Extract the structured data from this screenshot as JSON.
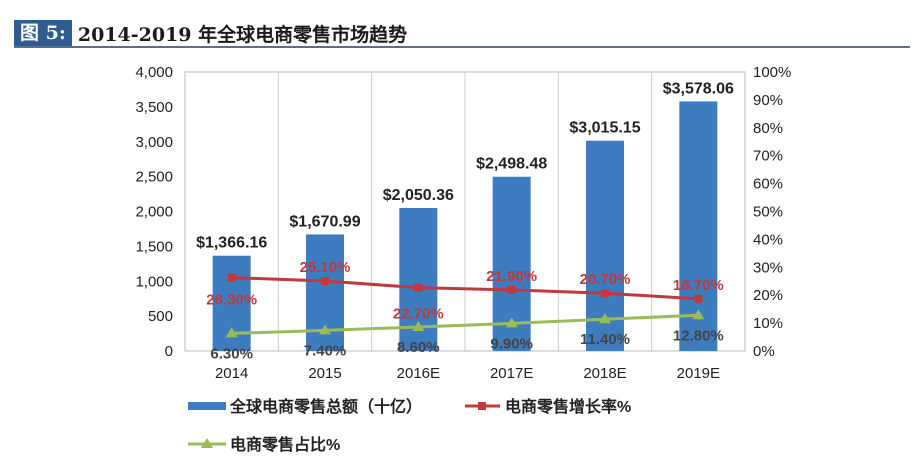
{
  "title": {
    "figure_label": "图 5:",
    "text": "2014-2019 年全球电商零售市场趋势"
  },
  "chart_data": {
    "type": "bar",
    "categories": [
      "2014",
      "2015",
      "2016E",
      "2017E",
      "2018E",
      "2019E"
    ],
    "series": [
      {
        "name": "全球电商零售总额（十亿）",
        "type": "bar",
        "axis": "left",
        "color": "#3e7cc0",
        "values": [
          1366.16,
          1670.99,
          2050.36,
          2498.48,
          3015.15,
          3578.06
        ],
        "labels": [
          "$1,366.16",
          "$1,670.99",
          "$2,050.36",
          "$2,498.48",
          "$3,015.15",
          "$3,578.06"
        ]
      },
      {
        "name": "电商零售增长率%",
        "type": "line",
        "axis": "right",
        "color": "#c0393b",
        "values": [
          26.3,
          25.1,
          22.7,
          21.9,
          20.7,
          18.7
        ],
        "labels": [
          "26.30%",
          "25.10%",
          "22.70%",
          "21.90%",
          "20.70%",
          "18.70%"
        ]
      },
      {
        "name": "电商零售占比%",
        "type": "line",
        "axis": "right",
        "color": "#9bbb59",
        "values": [
          6.3,
          7.4,
          8.6,
          9.9,
          11.4,
          12.8
        ],
        "labels": [
          "6.30%",
          "7.40%",
          "8.60%",
          "9.90%",
          "11.40%",
          "12.80%"
        ]
      }
    ],
    "left_axis": {
      "ylim": [
        0,
        4000
      ],
      "ticks": [
        "0",
        "500",
        "1,000",
        "1,500",
        "2,000",
        "2,500",
        "3,000",
        "3,500",
        "4,000"
      ]
    },
    "right_axis": {
      "ylim": [
        0,
        100
      ],
      "ticks": [
        "0%",
        "10%",
        "20%",
        "30%",
        "40%",
        "50%",
        "60%",
        "70%",
        "80%",
        "90%",
        "100%"
      ]
    },
    "legend": "bottom"
  }
}
